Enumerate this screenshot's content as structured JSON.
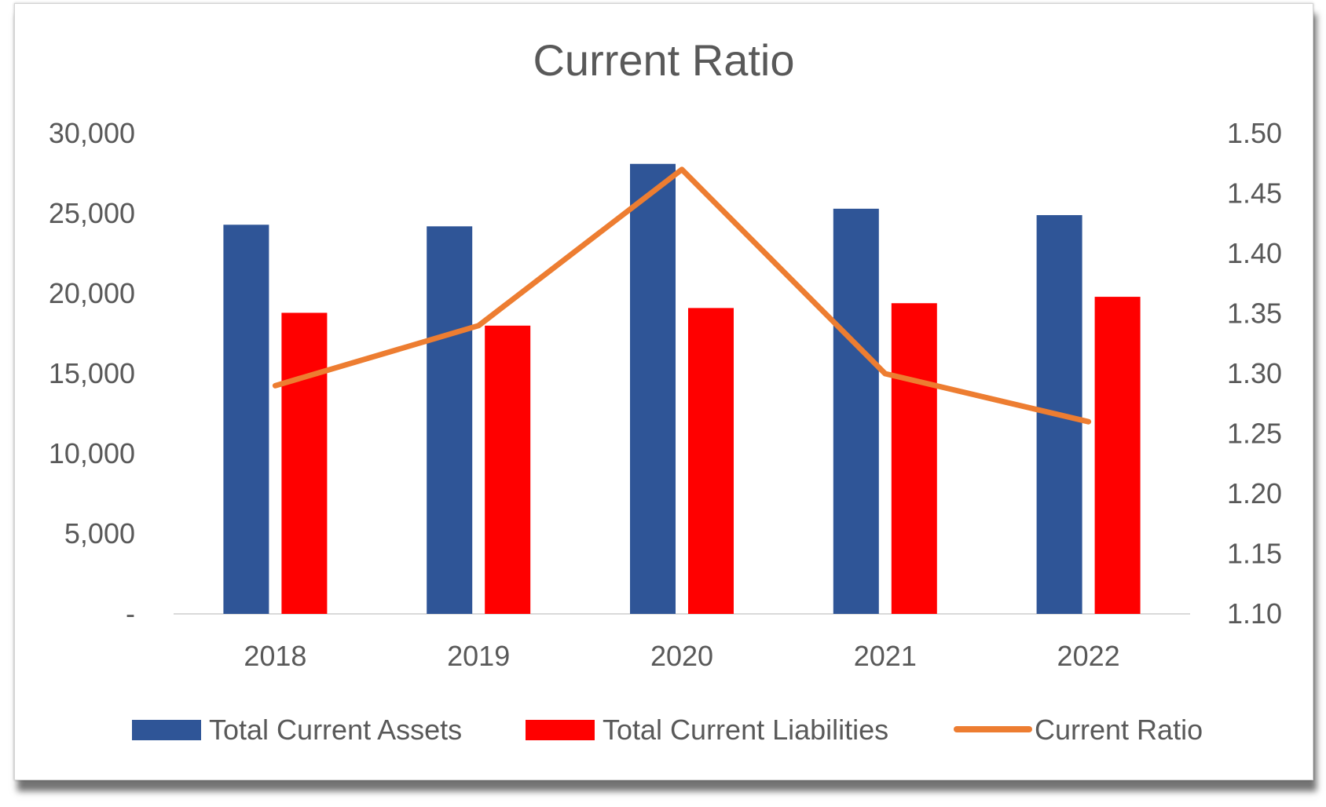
{
  "chart_data": {
    "type": "bar",
    "title": "Current Ratio",
    "categories": [
      "2018",
      "2019",
      "2020",
      "2021",
      "2022"
    ],
    "series": [
      {
        "name": "Total Current Assets",
        "type": "bar",
        "axis": "left",
        "color": "#2F5597",
        "values": [
          24300,
          24200,
          28100,
          25300,
          24900
        ]
      },
      {
        "name": "Total Current Liabilities",
        "type": "bar",
        "axis": "left",
        "color": "#FF0000",
        "values": [
          18800,
          18000,
          19100,
          19400,
          19800
        ]
      },
      {
        "name": "Current Ratio",
        "type": "line",
        "axis": "right",
        "color": "#ED7D31",
        "values": [
          1.29,
          1.34,
          1.47,
          1.3,
          1.26
        ]
      }
    ],
    "y_left": {
      "ylim": [
        0,
        30000
      ],
      "tick_labels": [
        "-",
        "5,000",
        "10,000",
        "15,000",
        "20,000",
        "25,000",
        "30,000"
      ]
    },
    "y_right": {
      "ylim": [
        1.1,
        1.5
      ],
      "tick_labels": [
        "1.10",
        "1.15",
        "1.20",
        "1.25",
        "1.30",
        "1.35",
        "1.40",
        "1.45",
        "1.50"
      ]
    },
    "grid": false,
    "legend_position": "bottom"
  }
}
